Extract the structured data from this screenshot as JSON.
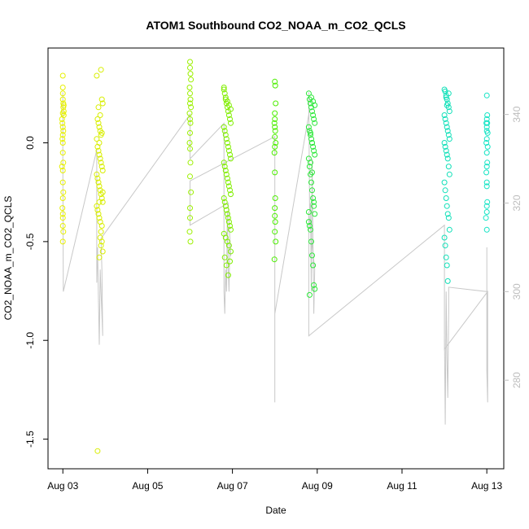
{
  "chart_data": {
    "type": "scatter",
    "title": "ATOM1 Southbound CO2_NOAA_m_CO2_QCLS",
    "xlabel": "Date",
    "ylabel": "CO2_NOAA_m_CO2_QCLS",
    "x_tick_labels": [
      "Aug 03",
      "Aug 05",
      "Aug 07",
      "Aug 09",
      "Aug 11",
      "Aug 13"
    ],
    "x_tick_days": [
      3,
      5,
      7,
      9,
      11,
      13
    ],
    "xlim_days": [
      2.65,
      13.4
    ],
    "ylim": [
      -1.65,
      0.48
    ],
    "y_ticks": [
      -1.5,
      -1.0,
      -0.5,
      0.0
    ],
    "y_tick_labels": [
      "-1.5",
      "-1.0",
      "-0.5",
      "0.0"
    ],
    "y2_ticks": [
      280,
      300,
      320,
      340
    ],
    "y2_tick_labels": [
      "280",
      "300",
      "320",
      "340"
    ],
    "y2lim": [
      260,
      355
    ],
    "marker": "open-circle",
    "colors": {
      "secondary_line": "#c8c8c8",
      "right_axis": "#bdbdbd"
    },
    "series": [
      {
        "color": "#e6f000",
        "x": [
          3.0,
          3.0,
          3.0,
          3.0,
          3.01,
          3.01,
          3.02,
          3.02,
          2.98,
          2.99,
          3.0,
          3.01,
          3.0,
          2.99,
          3.0,
          3.0,
          3.01,
          2.98,
          3.0,
          3.0,
          3.01,
          3.0,
          2.99,
          3.0,
          3.0,
          3.0,
          3.01,
          3.0,
          3.02,
          3.0
        ],
        "y": [
          0.34,
          0.28,
          0.25,
          0.22,
          0.2,
          0.18,
          0.16,
          0.14,
          0.12,
          0.1,
          0.08,
          0.06,
          0.04,
          0.02,
          0.0,
          -0.05,
          -0.1,
          -0.12,
          -0.14,
          -0.2,
          -0.25,
          -0.28,
          -0.33,
          -0.36,
          -0.38,
          -0.42,
          -0.45,
          -0.5,
          0.19,
          0.15
        ]
      },
      {
        "color": "#d8ee00",
        "x": [
          3.8,
          3.82,
          3.84,
          3.86,
          3.88,
          3.9,
          3.92,
          3.94,
          3.8,
          3.82,
          3.84,
          3.86,
          3.88,
          3.9,
          3.92,
          3.94,
          3.8,
          3.82,
          3.84,
          3.86,
          3.88,
          3.9,
          3.92,
          3.94,
          3.8,
          3.82,
          3.84,
          3.86,
          3.88,
          3.9,
          3.92,
          3.94,
          3.86,
          3.88,
          3.9,
          3.92,
          3.84,
          3.88,
          3.9,
          3.82,
          3.86,
          3.92,
          3.94,
          3.86
        ],
        "y": [
          0.34,
          0.12,
          0.1,
          0.08,
          0.06,
          0.04,
          0.22,
          0.2,
          0.02,
          -0.02,
          -0.04,
          -0.06,
          -0.08,
          -0.1,
          -0.12,
          -0.14,
          -0.16,
          -0.18,
          -0.2,
          -0.22,
          -0.24,
          -0.26,
          -0.28,
          -0.3,
          -0.32,
          -0.34,
          -0.36,
          -0.38,
          -0.4,
          -0.45,
          -0.5,
          -0.55,
          -0.58,
          -0.48,
          -0.52,
          -0.42,
          0.18,
          0.14,
          0.37,
          -1.56,
          0.0,
          0.05,
          -0.25,
          -0.3
        ]
      },
      {
        "color": "#9cf000",
        "x": [
          6.0,
          6.0,
          6.01,
          6.02,
          5.99,
          6.0,
          6.01,
          6.0,
          6.02,
          5.99,
          6.0,
          6.01,
          6.0,
          5.99,
          6.0,
          6.01,
          6.0,
          6.02,
          6.0,
          6.0,
          5.99,
          6.01
        ],
        "y": [
          0.41,
          0.38,
          0.35,
          0.32,
          0.28,
          0.25,
          0.22,
          0.2,
          0.18,
          0.15,
          0.12,
          0.1,
          0.05,
          0.0,
          -0.03,
          -0.1,
          -0.17,
          -0.25,
          -0.33,
          -0.38,
          -0.45,
          -0.5
        ]
      },
      {
        "color": "#80ee00",
        "x": [
          6.8,
          6.82,
          6.84,
          6.86,
          6.88,
          6.9,
          6.92,
          6.94,
          6.96,
          6.8,
          6.82,
          6.84,
          6.86,
          6.88,
          6.9,
          6.92,
          6.94,
          6.96,
          6.8,
          6.82,
          6.84,
          6.86,
          6.88,
          6.9,
          6.92,
          6.94,
          6.96,
          6.8,
          6.82,
          6.84,
          6.86,
          6.88,
          6.9,
          6.92,
          6.94,
          6.96,
          6.8,
          6.84,
          6.88,
          6.92,
          6.96,
          6.82,
          6.86,
          6.9,
          6.94,
          6.8,
          6.84,
          6.88,
          6.92,
          6.96
        ],
        "y": [
          0.28,
          0.25,
          0.22,
          0.2,
          0.18,
          0.16,
          0.14,
          0.12,
          0.1,
          0.08,
          0.06,
          0.04,
          0.02,
          0.0,
          -0.02,
          -0.04,
          -0.06,
          -0.08,
          -0.1,
          -0.12,
          -0.14,
          -0.16,
          -0.18,
          -0.2,
          -0.22,
          -0.24,
          -0.26,
          -0.28,
          -0.3,
          -0.32,
          -0.34,
          -0.36,
          -0.38,
          -0.4,
          -0.42,
          -0.44,
          -0.46,
          -0.48,
          -0.5,
          -0.52,
          -0.55,
          -0.58,
          -0.62,
          -0.67,
          -0.6,
          0.27,
          0.23,
          0.21,
          0.19,
          0.17
        ]
      },
      {
        "color": "#4cee00",
        "x": [
          8.0,
          8.01,
          8.02,
          8.0,
          7.99,
          8.0,
          8.01,
          8.0,
          8.02,
          8.0,
          7.99,
          8.0,
          8.01,
          8.0,
          8.0,
          8.01,
          8.0,
          8.02,
          7.99,
          8.0
        ],
        "y": [
          0.31,
          0.29,
          0.2,
          0.15,
          0.1,
          0.08,
          0.06,
          0.03,
          0.0,
          -0.02,
          -0.05,
          -0.15,
          -0.28,
          -0.33,
          -0.37,
          -0.4,
          -0.45,
          -0.5,
          -0.59,
          0.12
        ]
      },
      {
        "color": "#2ce83a",
        "x": [
          8.8,
          8.82,
          8.84,
          8.86,
          8.88,
          8.9,
          8.92,
          8.94,
          8.8,
          8.82,
          8.84,
          8.86,
          8.88,
          8.9,
          8.92,
          8.94,
          8.8,
          8.82,
          8.84,
          8.86,
          8.88,
          8.9,
          8.92,
          8.94,
          8.8,
          8.82,
          8.84,
          8.86,
          8.88,
          8.9,
          8.92,
          8.94,
          8.82,
          8.86,
          8.9,
          8.94,
          8.84,
          8.88,
          8.92,
          8.8,
          8.84,
          8.88
        ],
        "y": [
          0.25,
          0.22,
          0.2,
          0.18,
          0.16,
          0.14,
          0.12,
          0.1,
          0.08,
          0.06,
          0.04,
          0.02,
          0.0,
          -0.02,
          -0.04,
          -0.06,
          -0.08,
          -0.12,
          -0.16,
          -0.2,
          -0.24,
          -0.28,
          -0.32,
          -0.36,
          -0.4,
          -0.42,
          -0.44,
          -0.5,
          -0.57,
          -0.62,
          -0.72,
          -0.74,
          -0.77,
          0.23,
          0.21,
          0.19,
          -0.1,
          -0.15,
          -0.3,
          -0.35,
          0.05,
          0.0
        ]
      },
      {
        "color": "#10e0b8",
        "x": [
          12.0,
          12.02,
          12.04,
          12.06,
          12.08,
          12.1,
          12.12,
          12.0,
          12.02,
          12.04,
          12.06,
          12.08,
          12.1,
          12.12,
          12.0,
          12.02,
          12.04,
          12.06,
          12.08,
          12.1,
          12.12,
          12.0,
          12.02,
          12.04,
          12.06,
          12.08,
          12.1,
          12.12,
          12.0,
          12.02,
          12.04,
          12.06,
          12.08,
          12.1,
          12.04,
          12.06
        ],
        "y": [
          0.27,
          0.26,
          0.24,
          0.22,
          0.2,
          0.18,
          0.16,
          0.14,
          0.12,
          0.1,
          0.08,
          0.06,
          0.04,
          0.02,
          0.0,
          -0.02,
          -0.04,
          -0.06,
          -0.08,
          -0.12,
          -0.16,
          -0.2,
          -0.24,
          -0.28,
          -0.32,
          -0.36,
          -0.38,
          -0.44,
          -0.48,
          -0.52,
          -0.58,
          -0.62,
          -0.7,
          0.25,
          0.23,
          0.19
        ]
      },
      {
        "color": "#14e4c4",
        "x": [
          13.0,
          13.01,
          13.0,
          12.99,
          13.0,
          13.02,
          13.0,
          12.99,
          13.0,
          13.01,
          13.0,
          12.99,
          13.0,
          13.0,
          13.01,
          13.0,
          13.0,
          12.98,
          13.0,
          13.01,
          13.0,
          13.02
        ],
        "y": [
          0.24,
          0.14,
          0.12,
          0.1,
          0.08,
          0.05,
          0.02,
          0.0,
          -0.05,
          -0.1,
          -0.12,
          -0.15,
          -0.2,
          -0.22,
          -0.3,
          -0.32,
          -0.35,
          -0.38,
          -0.44,
          0.1,
          0.06,
          -0.02
        ]
      }
    ],
    "secondary_series": {
      "name_axis": "right",
      "x": [
        3.0,
        3.0,
        3.01,
        3.8,
        3.8,
        3.82,
        3.84,
        3.86,
        3.88,
        3.9,
        3.92,
        3.94,
        3.92,
        3.9,
        6.0,
        6.0,
        6.8,
        6.8,
        6.82,
        6.84,
        6.86,
        6.88,
        6.9,
        6.92,
        6.94,
        6.96,
        6.9,
        6.0,
        6.0,
        8.0,
        8.0,
        8.0,
        8.0,
        8.8,
        8.8,
        8.82,
        8.84,
        8.86,
        8.88,
        8.9,
        8.92,
        8.94,
        8.8,
        8.8,
        12.0,
        12.0,
        12.02,
        12.04,
        12.06,
        12.08,
        12.1,
        12.1,
        13.0,
        13.0,
        13.0,
        13.0,
        13.02,
        13.02,
        12.0,
        12.0
      ],
      "y": [
        345,
        330,
        300,
        332,
        302,
        310,
        298,
        288,
        305,
        300,
        295,
        290,
        305,
        312,
        340,
        330,
        338,
        300,
        295,
        305,
        300,
        318,
        305,
        300,
        312,
        308,
        320,
        315,
        325,
        335,
        282,
        275,
        295,
        340,
        345,
        318,
        320,
        300,
        330,
        310,
        295,
        305,
        318,
        290,
        315,
        290,
        270,
        300,
        285,
        276,
        295,
        301,
        300,
        310,
        296,
        282,
        275,
        300,
        287,
        300
      ]
    }
  }
}
